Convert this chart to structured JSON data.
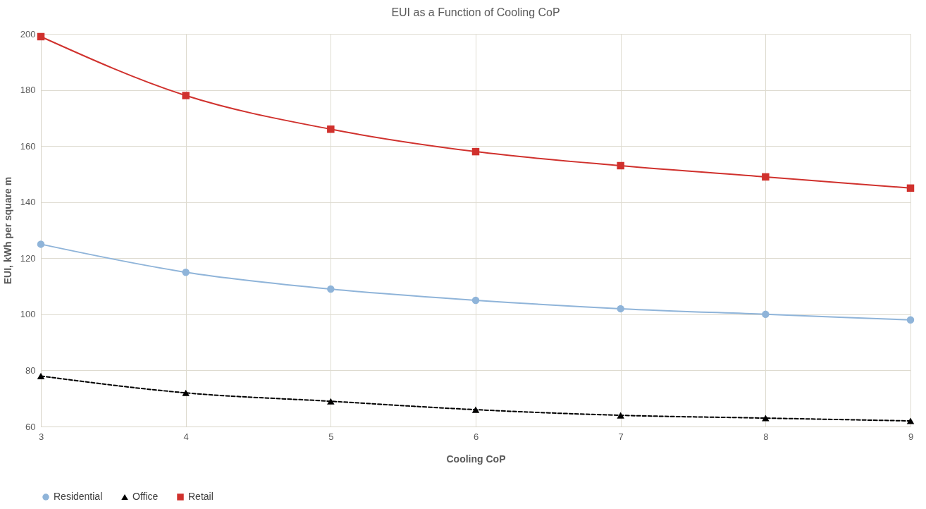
{
  "chart_data": {
    "type": "line",
    "title": "EUI as a Function of Cooling CoP",
    "xlabel": "Cooling CoP",
    "ylabel": "EUI, kWh per square m",
    "x": [
      3,
      4,
      5,
      6,
      7,
      8,
      9
    ],
    "series": [
      {
        "name": "Residential",
        "color": "#8fb4d9",
        "marker": "circle",
        "line_style": "solid",
        "values": [
          125,
          115,
          109,
          105,
          102,
          100,
          98
        ]
      },
      {
        "name": "Office",
        "color": "#000000",
        "marker": "triangle",
        "line_style": "dashed",
        "values": [
          78,
          72,
          69,
          66,
          64,
          63,
          62
        ]
      },
      {
        "name": "Retail",
        "color": "#d0312d",
        "marker": "square",
        "line_style": "solid",
        "values": [
          199,
          178,
          166,
          158,
          153,
          149,
          145
        ]
      }
    ],
    "xlim": [
      3,
      9
    ],
    "xticks": [
      3,
      4,
      5,
      6,
      7,
      8,
      9
    ],
    "ylim": [
      60,
      200
    ],
    "yticks": [
      60,
      80,
      100,
      120,
      140,
      160,
      180,
      200
    ],
    "grid": true,
    "legend": "bottom"
  }
}
